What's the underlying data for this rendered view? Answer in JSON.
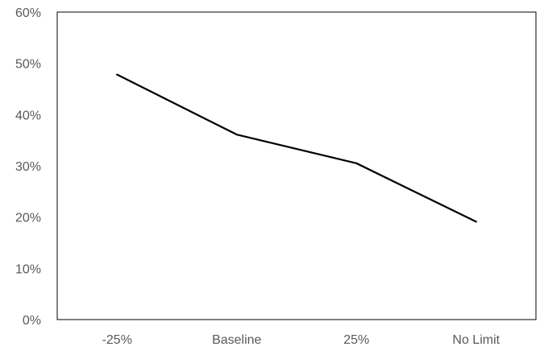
{
  "chart_data": {
    "type": "line",
    "title": "",
    "xlabel": "",
    "ylabel": "",
    "categories": [
      "-25%",
      "Baseline",
      "25%",
      "No Limit"
    ],
    "series": [
      {
        "values": [
          0.478,
          0.361,
          0.305,
          0.191
        ]
      }
    ],
    "ylim": [
      0,
      0.6
    ],
    "yticks": [
      {
        "value": 0.0,
        "label": "0%"
      },
      {
        "value": 0.1,
        "label": "10%"
      },
      {
        "value": 0.2,
        "label": "20%"
      },
      {
        "value": 0.3,
        "label": "30%"
      },
      {
        "value": 0.4,
        "label": "40%"
      },
      {
        "value": 0.5,
        "label": "50%"
      },
      {
        "value": 0.6,
        "label": "60%"
      }
    ],
    "grid": false,
    "legend": "none",
    "colors": {
      "line": "#000000",
      "axis": "#000000",
      "tick_text": "#595959"
    }
  }
}
